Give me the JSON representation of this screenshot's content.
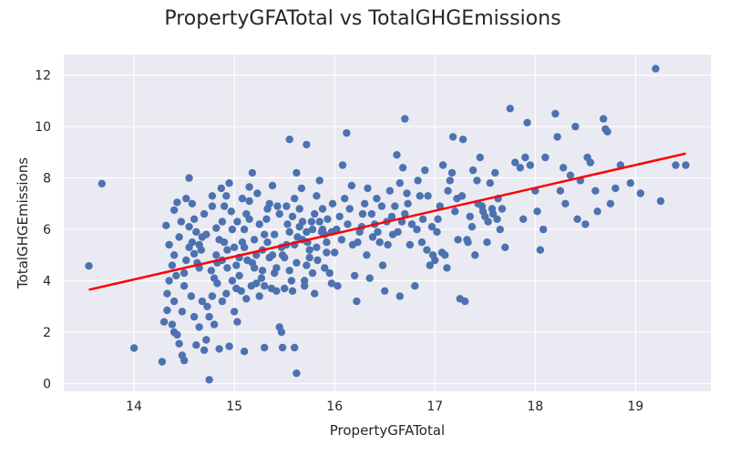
{
  "chart_data": {
    "type": "scatter",
    "title": "PropertyGFATotal vs TotalGHGEmissions",
    "xlabel": "PropertyGFATotal",
    "ylabel": "TotalGHGEmissions",
    "xlim": [
      13.3,
      19.75
    ],
    "ylim": [
      -0.3,
      12.8
    ],
    "xticks": [
      14,
      15,
      16,
      17,
      18,
      19
    ],
    "yticks": [
      0,
      2,
      4,
      6,
      8,
      10,
      12
    ],
    "grid": true,
    "colors": {
      "point": "#4c72b0",
      "trend": "#ff0000",
      "background": "#eaeaf2",
      "grid": "#ffffff"
    },
    "trendline": {
      "x": [
        13.55,
        19.5
      ],
      "y": [
        3.65,
        8.95
      ]
    },
    "points": [
      [
        13.55,
        4.58
      ],
      [
        13.68,
        7.78
      ],
      [
        14.0,
        1.38
      ],
      [
        14.28,
        0.85
      ],
      [
        14.3,
        2.4
      ],
      [
        14.33,
        2.85
      ],
      [
        14.33,
        3.5
      ],
      [
        14.35,
        4.0
      ],
      [
        14.38,
        4.6
      ],
      [
        14.35,
        5.4
      ],
      [
        14.32,
        6.15
      ],
      [
        14.4,
        6.75
      ],
      [
        14.43,
        7.05
      ],
      [
        14.45,
        5.7
      ],
      [
        14.4,
        5.0
      ],
      [
        14.4,
        3.2
      ],
      [
        14.4,
        2.0
      ],
      [
        14.45,
        1.55
      ],
      [
        14.48,
        1.1
      ],
      [
        14.5,
        0.9
      ],
      [
        14.5,
        3.8
      ],
      [
        14.52,
        4.8
      ],
      [
        14.55,
        5.3
      ],
      [
        14.55,
        6.1
      ],
      [
        14.58,
        7.0
      ],
      [
        14.55,
        8.0
      ],
      [
        14.6,
        6.4
      ],
      [
        14.62,
        5.9
      ],
      [
        14.65,
        4.5
      ],
      [
        14.68,
        3.2
      ],
      [
        14.65,
        2.2
      ],
      [
        14.7,
        1.3
      ],
      [
        14.72,
        1.7
      ],
      [
        14.75,
        2.6
      ],
      [
        14.78,
        3.4
      ],
      [
        14.8,
        4.1
      ],
      [
        14.82,
        5.0
      ],
      [
        14.85,
        5.6
      ],
      [
        14.88,
        6.3
      ],
      [
        14.9,
        6.9
      ],
      [
        14.92,
        7.3
      ],
      [
        14.95,
        7.8
      ],
      [
        14.75,
        0.15
      ],
      [
        14.85,
        1.35
      ],
      [
        14.95,
        1.45
      ],
      [
        15.0,
        2.8
      ],
      [
        15.02,
        3.7
      ],
      [
        15.05,
        4.2
      ],
      [
        15.05,
        4.9
      ],
      [
        15.08,
        5.5
      ],
      [
        15.1,
        6.0
      ],
      [
        15.12,
        6.6
      ],
      [
        15.15,
        7.1
      ],
      [
        15.15,
        7.65
      ],
      [
        15.18,
        8.2
      ],
      [
        15.2,
        4.5
      ],
      [
        15.22,
        3.9
      ],
      [
        15.25,
        3.4
      ],
      [
        15.28,
        5.2
      ],
      [
        15.3,
        5.8
      ],
      [
        15.32,
        6.4
      ],
      [
        15.35,
        7.0
      ],
      [
        15.38,
        7.7
      ],
      [
        15.4,
        4.3
      ],
      [
        15.42,
        3.6
      ],
      [
        15.45,
        2.2
      ],
      [
        15.47,
        2.0
      ],
      [
        15.5,
        4.9
      ],
      [
        15.52,
        5.4
      ],
      [
        15.55,
        5.9
      ],
      [
        15.58,
        6.5
      ],
      [
        15.6,
        7.2
      ],
      [
        15.55,
        9.5
      ],
      [
        15.62,
        8.2
      ],
      [
        15.65,
        6.1
      ],
      [
        15.68,
        5.6
      ],
      [
        15.7,
        3.8
      ],
      [
        15.72,
        4.6
      ],
      [
        15.75,
        5.2
      ],
      [
        15.78,
        6.0
      ],
      [
        15.8,
        6.6
      ],
      [
        15.82,
        7.3
      ],
      [
        15.72,
        9.3
      ],
      [
        15.85,
        7.9
      ],
      [
        15.88,
        6.8
      ],
      [
        15.9,
        5.8
      ],
      [
        15.92,
        5.1
      ],
      [
        15.95,
        4.3
      ],
      [
        15.97,
        3.9
      ],
      [
        15.3,
        1.4
      ],
      [
        15.48,
        1.4
      ],
      [
        15.6,
        1.4
      ],
      [
        15.62,
        0.4
      ],
      [
        15.1,
        1.25
      ],
      [
        14.92,
        3.5
      ],
      [
        14.98,
        4.0
      ],
      [
        14.6,
        5.05
      ],
      [
        14.65,
        5.4
      ],
      [
        14.7,
        6.6
      ],
      [
        14.78,
        7.3
      ],
      [
        14.82,
        6.05
      ],
      [
        14.88,
        4.8
      ],
      [
        15.0,
        5.3
      ],
      [
        15.03,
        6.3
      ],
      [
        15.08,
        7.2
      ],
      [
        15.12,
        3.3
      ],
      [
        15.18,
        4.7
      ],
      [
        15.25,
        6.2
      ],
      [
        15.3,
        3.8
      ],
      [
        15.35,
        4.9
      ],
      [
        15.4,
        5.8
      ],
      [
        15.45,
        6.6
      ],
      [
        15.5,
        3.7
      ],
      [
        15.55,
        4.4
      ],
      [
        15.6,
        5.4
      ],
      [
        15.65,
        6.8
      ],
      [
        15.7,
        4.0
      ],
      [
        15.75,
        4.9
      ],
      [
        15.8,
        3.5
      ],
      [
        15.85,
        6.3
      ],
      [
        15.9,
        4.5
      ],
      [
        16.0,
        5.1
      ],
      [
        16.02,
        6.0
      ],
      [
        16.05,
        6.5
      ],
      [
        16.08,
        8.5
      ],
      [
        16.1,
        7.2
      ],
      [
        16.12,
        9.75
      ],
      [
        16.15,
        6.8
      ],
      [
        16.18,
        5.4
      ],
      [
        16.2,
        4.2
      ],
      [
        16.22,
        3.2
      ],
      [
        16.25,
        5.9
      ],
      [
        16.28,
        6.6
      ],
      [
        16.3,
        7.0
      ],
      [
        16.32,
        5.0
      ],
      [
        16.35,
        4.1
      ],
      [
        16.38,
        5.7
      ],
      [
        16.4,
        6.2
      ],
      [
        16.42,
        7.2
      ],
      [
        16.45,
        5.5
      ],
      [
        16.48,
        4.6
      ],
      [
        16.5,
        3.6
      ],
      [
        16.52,
        6.3
      ],
      [
        16.55,
        7.5
      ],
      [
        16.58,
        5.8
      ],
      [
        16.6,
        6.9
      ],
      [
        16.62,
        8.9
      ],
      [
        16.65,
        7.8
      ],
      [
        16.68,
        8.4
      ],
      [
        16.7,
        6.6
      ],
      [
        16.72,
        7.4
      ],
      [
        16.75,
        5.4
      ],
      [
        16.8,
        3.8
      ],
      [
        16.82,
        6.0
      ],
      [
        16.85,
        7.3
      ],
      [
        16.88,
        6.4
      ],
      [
        16.9,
        8.3
      ],
      [
        16.7,
        10.3
      ],
      [
        16.65,
        3.4
      ],
      [
        16.92,
        5.2
      ],
      [
        16.95,
        4.6
      ],
      [
        16.98,
        5.0
      ],
      [
        17.0,
        4.8
      ],
      [
        17.02,
        5.9
      ],
      [
        17.05,
        6.9
      ],
      [
        17.08,
        8.5
      ],
      [
        17.1,
        5.0
      ],
      [
        17.12,
        4.5
      ],
      [
        17.15,
        7.9
      ],
      [
        17.18,
        9.6
      ],
      [
        17.2,
        6.7
      ],
      [
        17.22,
        7.2
      ],
      [
        17.25,
        3.3
      ],
      [
        17.28,
        9.5
      ],
      [
        17.3,
        3.2
      ],
      [
        17.32,
        5.6
      ],
      [
        17.35,
        6.5
      ],
      [
        17.38,
        8.3
      ],
      [
        17.4,
        5.0
      ],
      [
        17.42,
        7.9
      ],
      [
        17.45,
        8.8
      ],
      [
        17.48,
        6.7
      ],
      [
        17.5,
        6.5
      ],
      [
        17.52,
        5.5
      ],
      [
        17.55,
        7.8
      ],
      [
        17.58,
        6.6
      ],
      [
        17.6,
        8.2
      ],
      [
        17.62,
        6.4
      ],
      [
        17.65,
        6.0
      ],
      [
        17.7,
        5.3
      ],
      [
        17.75,
        10.7
      ],
      [
        17.8,
        8.6
      ],
      [
        17.85,
        8.4
      ],
      [
        17.88,
        6.4
      ],
      [
        17.9,
        8.8
      ],
      [
        17.92,
        10.15
      ],
      [
        17.95,
        8.5
      ],
      [
        18.0,
        7.5
      ],
      [
        18.02,
        6.7
      ],
      [
        18.05,
        5.2
      ],
      [
        18.08,
        6.0
      ],
      [
        18.1,
        8.8
      ],
      [
        18.2,
        10.5
      ],
      [
        18.22,
        9.6
      ],
      [
        18.25,
        7.5
      ],
      [
        18.28,
        8.4
      ],
      [
        18.3,
        7.0
      ],
      [
        18.35,
        8.1
      ],
      [
        18.4,
        10.0
      ],
      [
        18.42,
        6.4
      ],
      [
        18.45,
        7.9
      ],
      [
        18.5,
        6.2
      ],
      [
        18.52,
        8.8
      ],
      [
        18.55,
        8.6
      ],
      [
        18.6,
        7.5
      ],
      [
        18.62,
        6.7
      ],
      [
        18.68,
        10.3
      ],
      [
        18.7,
        9.9
      ],
      [
        18.72,
        9.8
      ],
      [
        18.75,
        7.0
      ],
      [
        18.8,
        7.6
      ],
      [
        18.85,
        8.5
      ],
      [
        18.95,
        7.8
      ],
      [
        19.05,
        7.4
      ],
      [
        19.2,
        12.25
      ],
      [
        19.25,
        7.1
      ],
      [
        19.4,
        8.5
      ],
      [
        19.5,
        8.5
      ],
      [
        14.42,
        4.2
      ],
      [
        14.47,
        6.3
      ],
      [
        14.52,
        7.2
      ],
      [
        14.57,
        3.4
      ],
      [
        14.6,
        2.6
      ],
      [
        14.63,
        4.7
      ],
      [
        14.67,
        5.2
      ],
      [
        14.72,
        5.8
      ],
      [
        14.77,
        4.4
      ],
      [
        14.8,
        2.3
      ],
      [
        14.83,
        3.9
      ],
      [
        14.87,
        7.6
      ],
      [
        14.9,
        5.5
      ],
      [
        14.93,
        4.5
      ],
      [
        14.97,
        6.7
      ],
      [
        15.02,
        4.6
      ],
      [
        15.07,
        3.6
      ],
      [
        15.1,
        5.3
      ],
      [
        15.15,
        6.4
      ],
      [
        15.2,
        5.6
      ],
      [
        15.23,
        7.4
      ],
      [
        15.27,
        4.1
      ],
      [
        15.33,
        5.5
      ],
      [
        15.37,
        3.7
      ],
      [
        15.43,
        6.9
      ],
      [
        15.47,
        5.3
      ],
      [
        15.53,
        6.2
      ],
      [
        15.57,
        4.0
      ],
      [
        15.63,
        5.7
      ],
      [
        15.67,
        7.6
      ],
      [
        15.73,
        5.5
      ],
      [
        15.77,
        6.3
      ],
      [
        15.83,
        4.8
      ],
      [
        15.87,
        5.9
      ],
      [
        15.93,
        6.4
      ],
      [
        15.98,
        7.0
      ],
      [
        16.03,
        3.8
      ],
      [
        16.07,
        5.6
      ],
      [
        16.13,
        6.2
      ],
      [
        16.17,
        7.7
      ],
      [
        16.23,
        5.5
      ],
      [
        16.27,
        6.1
      ],
      [
        16.33,
        7.6
      ],
      [
        16.37,
        6.6
      ],
      [
        16.43,
        5.9
      ],
      [
        16.47,
        6.9
      ],
      [
        16.53,
        5.4
      ],
      [
        16.57,
        6.5
      ],
      [
        16.63,
        5.9
      ],
      [
        16.67,
        6.3
      ],
      [
        16.73,
        7.0
      ],
      [
        16.77,
        6.2
      ],
      [
        16.83,
        7.9
      ],
      [
        16.87,
        5.5
      ],
      [
        16.93,
        7.3
      ],
      [
        16.97,
        6.1
      ],
      [
        17.03,
        6.4
      ],
      [
        17.07,
        5.1
      ],
      [
        17.13,
        7.5
      ],
      [
        17.17,
        8.2
      ],
      [
        17.23,
        5.6
      ],
      [
        17.27,
        7.3
      ],
      [
        17.33,
        5.5
      ],
      [
        17.37,
        6.1
      ],
      [
        17.43,
        7.0
      ],
      [
        17.47,
        6.9
      ],
      [
        17.53,
        6.3
      ],
      [
        17.57,
        6.8
      ],
      [
        17.63,
        7.2
      ],
      [
        17.67,
        6.8
      ],
      [
        14.38,
        2.3
      ],
      [
        14.43,
        1.9
      ],
      [
        14.48,
        2.8
      ],
      [
        14.5,
        4.3
      ],
      [
        14.58,
        5.5
      ],
      [
        14.62,
        1.5
      ],
      [
        14.68,
        5.7
      ],
      [
        14.73,
        3.0
      ],
      [
        14.78,
        6.9
      ],
      [
        14.83,
        4.7
      ],
      [
        14.88,
        3.2
      ],
      [
        14.93,
        5.2
      ],
      [
        14.98,
        6.0
      ],
      [
        15.03,
        2.4
      ],
      [
        15.13,
        4.8
      ],
      [
        15.17,
        3.8
      ],
      [
        15.22,
        5.0
      ],
      [
        15.28,
        4.4
      ],
      [
        15.33,
        6.8
      ],
      [
        15.38,
        5.0
      ],
      [
        15.42,
        4.5
      ],
      [
        15.48,
        5.0
      ],
      [
        15.52,
        6.9
      ],
      [
        15.58,
        3.6
      ],
      [
        15.62,
        4.7
      ],
      [
        15.68,
        6.3
      ],
      [
        15.72,
        5.9
      ],
      [
        15.78,
        4.3
      ],
      [
        15.82,
        5.3
      ],
      [
        15.88,
        6.0
      ],
      [
        15.92,
        5.5
      ],
      [
        15.97,
        5.9
      ]
    ]
  }
}
